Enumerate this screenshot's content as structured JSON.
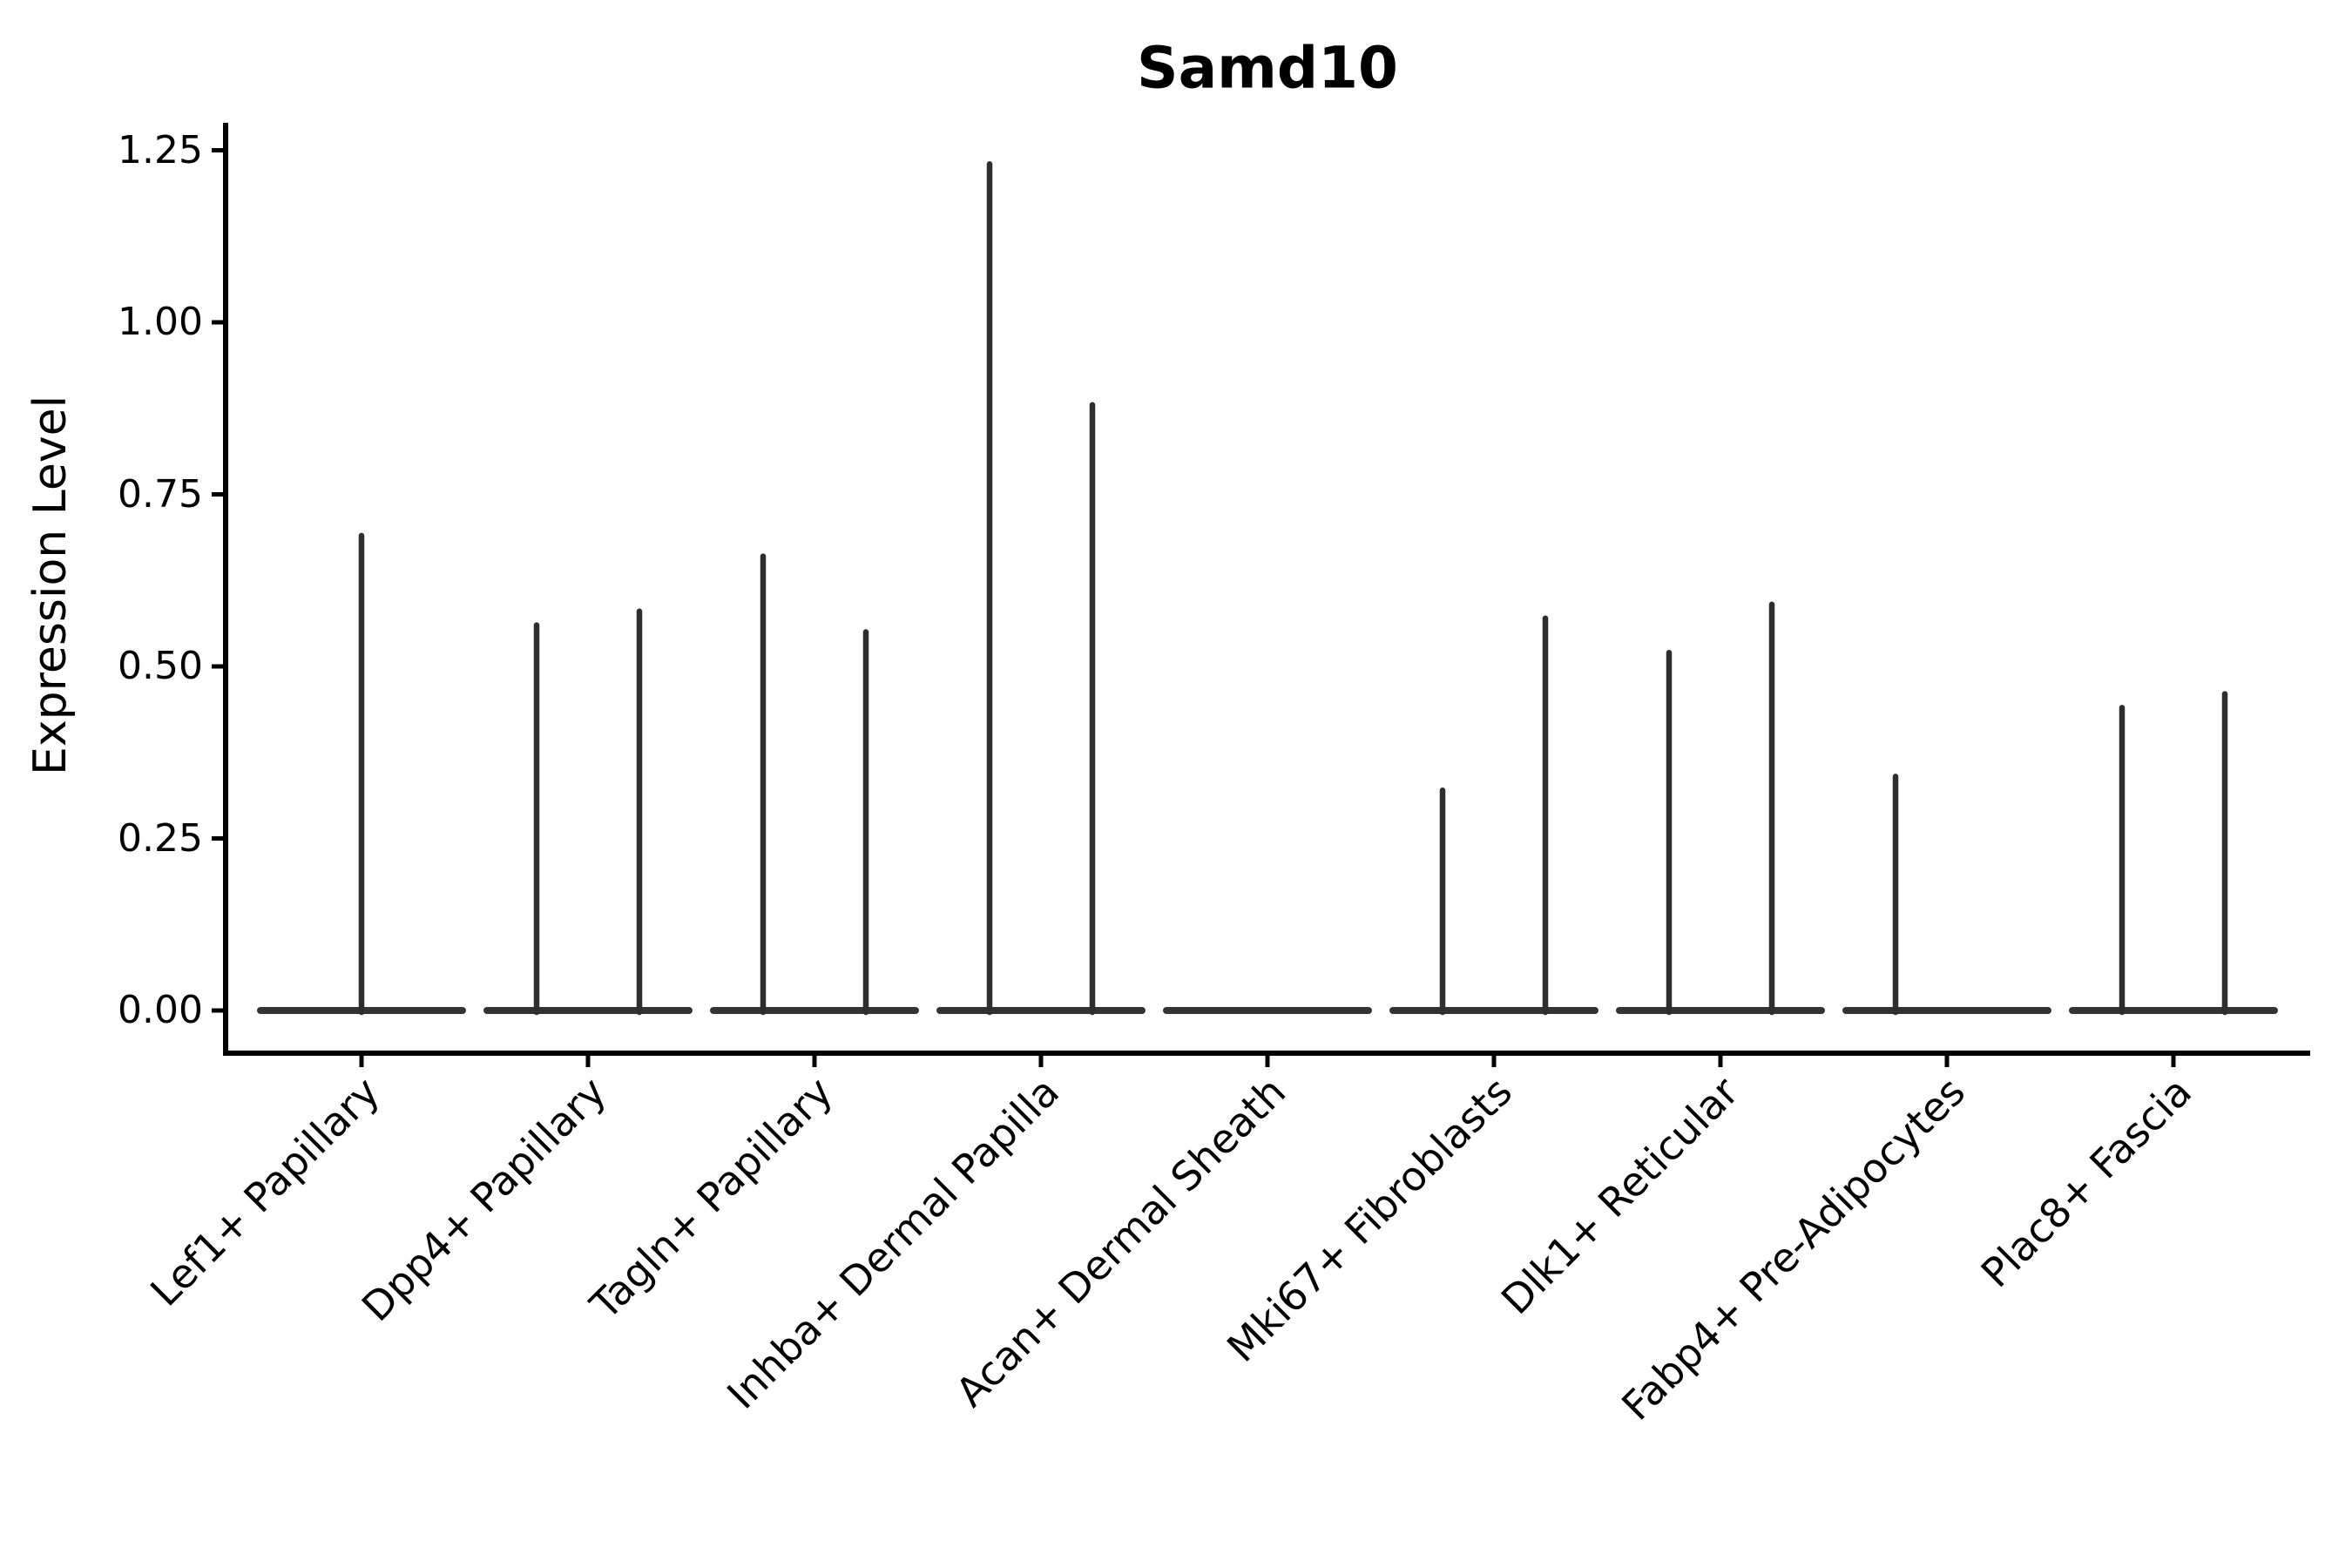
{
  "figure": {
    "background": "#ffffff",
    "violin_color": "#2e2e2e",
    "baseline_color": "#333333",
    "axis_color": "#000000"
  },
  "chart_data": {
    "type": "violin",
    "title": "Samd10",
    "ylabel": "Expression Level",
    "xlabel": "",
    "grid": false,
    "legend": "none",
    "ylim": [
      -0.06,
      1.29
    ],
    "yticks": [
      0,
      0.25,
      0.5,
      0.75,
      1.0,
      1.25
    ],
    "ytick_labels": [
      "0.00",
      "0.25",
      "0.50",
      "0.75",
      "1.00",
      "1.25"
    ],
    "baseline_value": 0,
    "categories": [
      "Lef1+ Papillary",
      "Dpp4+ Papillary",
      "Tagln+ Papillary",
      "Inhba+ Dermal Papilla",
      "Acan+ Dermal Sheath",
      "Mki67+ Fibroblasts",
      "Dlk1+ Reticular",
      "Fabp4+ Pre-Adipocytes",
      "Plac8+ Fascia"
    ],
    "violins": [
      {
        "category": "Lef1+ Papillary",
        "spikes": [
          {
            "position": "center",
            "max": 0.69
          }
        ]
      },
      {
        "category": "Dpp4+ Papillary",
        "spikes": [
          {
            "position": "left",
            "max": 0.56
          },
          {
            "position": "right",
            "max": 0.58
          }
        ]
      },
      {
        "category": "Tagln+ Papillary",
        "spikes": [
          {
            "position": "left",
            "max": 0.66
          },
          {
            "position": "right",
            "max": 0.55
          }
        ]
      },
      {
        "category": "Inhba+ Dermal Papilla",
        "spikes": [
          {
            "position": "left",
            "max": 1.23
          },
          {
            "position": "right",
            "max": 0.88
          }
        ]
      },
      {
        "category": "Acan+ Dermal Sheath",
        "spikes": []
      },
      {
        "category": "Mki67+ Fibroblasts",
        "spikes": [
          {
            "position": "left",
            "max": 0.32
          },
          {
            "position": "right",
            "max": 0.57
          }
        ]
      },
      {
        "category": "Dlk1+ Reticular",
        "spikes": [
          {
            "position": "left",
            "max": 0.52
          },
          {
            "position": "right",
            "max": 0.59
          }
        ]
      },
      {
        "category": "Fabp4+ Pre-Adipocytes",
        "spikes": [
          {
            "position": "left",
            "max": 0.34
          }
        ]
      },
      {
        "category": "Plac8+ Fascia",
        "spikes": [
          {
            "position": "left",
            "max": 0.44
          },
          {
            "position": "right",
            "max": 0.46
          }
        ]
      }
    ]
  }
}
